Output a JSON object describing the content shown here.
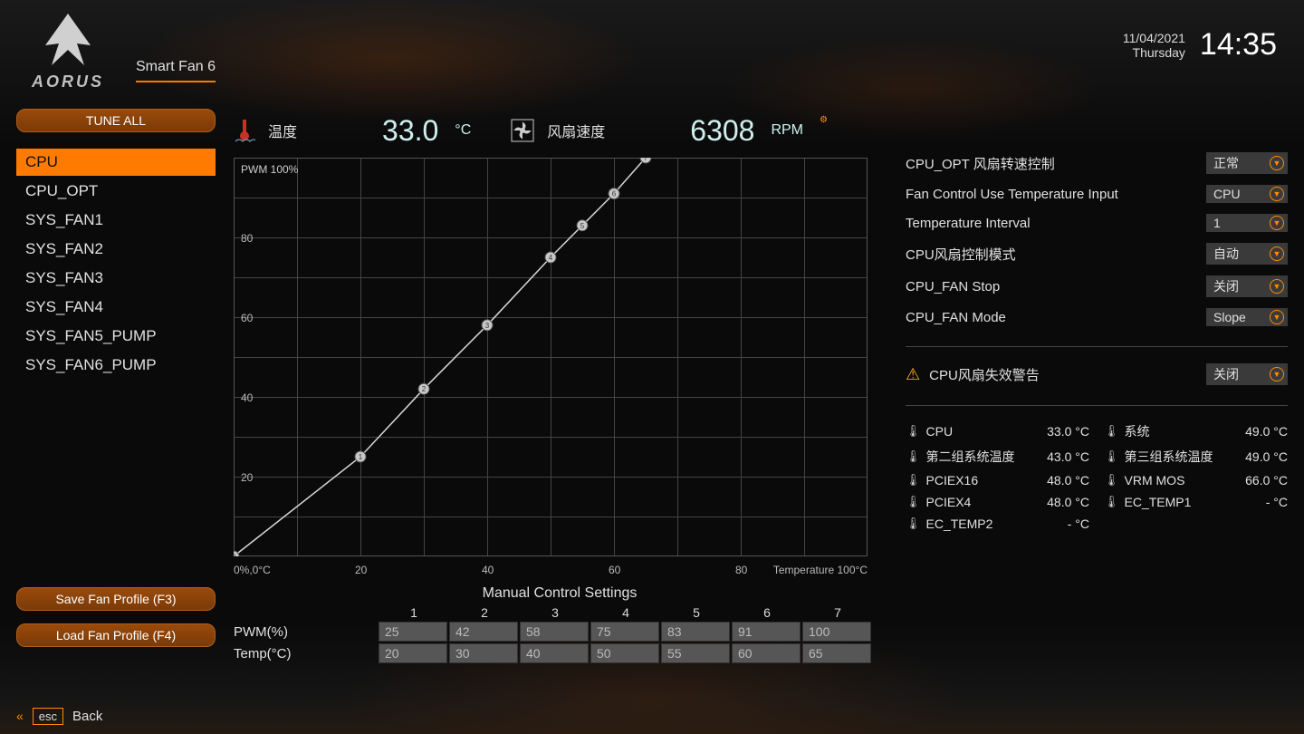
{
  "header": {
    "brand": "AORUS",
    "tab": "Smart Fan 6",
    "date": "11/04/2021",
    "day": "Thursday",
    "time": "14:35"
  },
  "sidebar": {
    "tune_all": "TUNE ALL",
    "fans": [
      "CPU",
      "CPU_OPT",
      "SYS_FAN1",
      "SYS_FAN2",
      "SYS_FAN3",
      "SYS_FAN4",
      "SYS_FAN5_PUMP",
      "SYS_FAN6_PUMP"
    ],
    "active_index": 0,
    "save_profile": "Save Fan Profile (F3)",
    "load_profile": "Load Fan Profile (F4)"
  },
  "readouts": {
    "temp_label": "温度",
    "temp_value": "33.0",
    "temp_unit": "°C",
    "fan_label": "风扇速度",
    "fan_value": "6308",
    "fan_unit": "RPM"
  },
  "chart": {
    "pwm_label": "PWM 100%",
    "y_ticks": [
      "80",
      "60",
      "40",
      "20"
    ],
    "x_ticks": [
      "20",
      "40",
      "60",
      "80"
    ],
    "origin_label": "0%,0°C",
    "temp_max_label": "Temperature 100°C",
    "points": [
      {
        "n": 0,
        "temp": 0,
        "pwm": 0
      },
      {
        "n": 1,
        "temp": 20,
        "pwm": 25
      },
      {
        "n": 2,
        "temp": 30,
        "pwm": 42
      },
      {
        "n": 3,
        "temp": 40,
        "pwm": 58
      },
      {
        "n": 4,
        "temp": 50,
        "pwm": 75
      },
      {
        "n": 5,
        "temp": 55,
        "pwm": 83
      },
      {
        "n": 6,
        "temp": 60,
        "pwm": 91
      },
      {
        "n": 7,
        "temp": 65,
        "pwm": 100
      }
    ],
    "grid_color": "#444",
    "line_color": "#d8d8d8",
    "point_fill": "#c8c8c8",
    "point_stroke": "#555"
  },
  "manual": {
    "title": "Manual Control Settings",
    "cols": [
      "1",
      "2",
      "3",
      "4",
      "5",
      "6",
      "7"
    ],
    "pwm_label": "PWM(%)",
    "temp_label": "Temp(°C)",
    "pwm_values": [
      "25",
      "42",
      "58",
      "75",
      "83",
      "91",
      "100"
    ],
    "temp_values": [
      "20",
      "30",
      "40",
      "50",
      "55",
      "60",
      "65"
    ]
  },
  "settings": [
    {
      "label": "CPU_OPT 风扇转速控制",
      "value": "正常"
    },
    {
      "label": "Fan Control Use Temperature Input",
      "value": "CPU"
    },
    {
      "label": "Temperature Interval",
      "value": "1"
    },
    {
      "label": "CPU风扇控制模式",
      "value": "自动"
    },
    {
      "label": "CPU_FAN Stop",
      "value": "关闭"
    },
    {
      "label": "CPU_FAN Mode",
      "value": "Slope"
    }
  ],
  "warning": {
    "label": "CPU风扇失效警告",
    "value": "关闭"
  },
  "temps": [
    {
      "name": "CPU",
      "value": "33.0 °C"
    },
    {
      "name": "系统",
      "value": "49.0 °C"
    },
    {
      "name": "第二组系统温度",
      "value": "43.0 °C"
    },
    {
      "name": "第三组系统温度",
      "value": "49.0 °C"
    },
    {
      "name": "PCIEX16",
      "value": "48.0 °C"
    },
    {
      "name": "VRM MOS",
      "value": "66.0 °C"
    },
    {
      "name": "PCIEX4",
      "value": "48.0 °C"
    },
    {
      "name": "EC_TEMP1",
      "value": "- °C"
    },
    {
      "name": "EC_TEMP2",
      "value": "- °C"
    }
  ],
  "footer": {
    "esc": "esc",
    "back": "Back"
  },
  "colors": {
    "accent": "#ff7a00",
    "bg": "#0a0a0a"
  }
}
